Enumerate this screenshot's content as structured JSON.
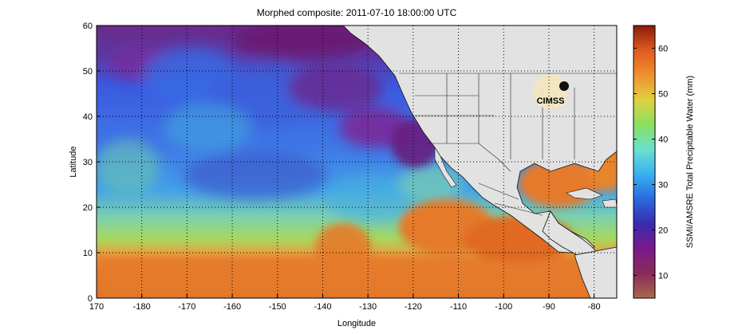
{
  "figure": {
    "title": "Morphed composite: 2011-07-10 18:00:00 UTC",
    "xlabel": "Longitude",
    "ylabel": "Latitude",
    "logo_text": "CIMSS"
  },
  "axes": {
    "lon_range": [
      170,
      -75
    ],
    "lat_range": [
      0,
      60
    ],
    "x_ticks": [
      {
        "value": 170,
        "label": "170"
      },
      {
        "value": 180,
        "label": "-180"
      },
      {
        "value": 190,
        "label": "-170"
      },
      {
        "value": 200,
        "label": "-160"
      },
      {
        "value": 210,
        "label": "-150"
      },
      {
        "value": 220,
        "label": "-140"
      },
      {
        "value": 230,
        "label": "-130"
      },
      {
        "value": 240,
        "label": "-120"
      },
      {
        "value": 250,
        "label": "-110"
      },
      {
        "value": 260,
        "label": "-100"
      },
      {
        "value": 270,
        "label": "-90"
      },
      {
        "value": 280,
        "label": "-80"
      }
    ],
    "y_ticks": [
      {
        "value": 0,
        "label": "0"
      },
      {
        "value": 10,
        "label": "10"
      },
      {
        "value": 20,
        "label": "20"
      },
      {
        "value": 30,
        "label": "30"
      },
      {
        "value": 40,
        "label": "40"
      },
      {
        "value": 50,
        "label": "50"
      },
      {
        "value": 60,
        "label": "60"
      }
    ],
    "grid": "dotted"
  },
  "colorbar": {
    "label": "SSMI/AMSRE Total Precipitable Water (mm)",
    "range": [
      5,
      65
    ],
    "ticks": [
      {
        "value": 10,
        "label": "10"
      },
      {
        "value": 20,
        "label": "20"
      },
      {
        "value": 30,
        "label": "30"
      },
      {
        "value": 40,
        "label": "40"
      },
      {
        "value": 50,
        "label": "50"
      },
      {
        "value": 60,
        "label": "60"
      }
    ],
    "colors": [
      "#a86a4a",
      "#8a2a5a",
      "#7a1a8a",
      "#3a2ab0",
      "#2a6ae0",
      "#3ab0f0",
      "#6ae0d0",
      "#8ae060",
      "#e0d040",
      "#f09030",
      "#e05a20",
      "#8a1a0a"
    ]
  },
  "colors": {
    "land": "#e2e2e2",
    "land_border": "#111111",
    "dry": "#6a2a88",
    "moist": "#4a70e0",
    "tropical": "#e8782a"
  }
}
